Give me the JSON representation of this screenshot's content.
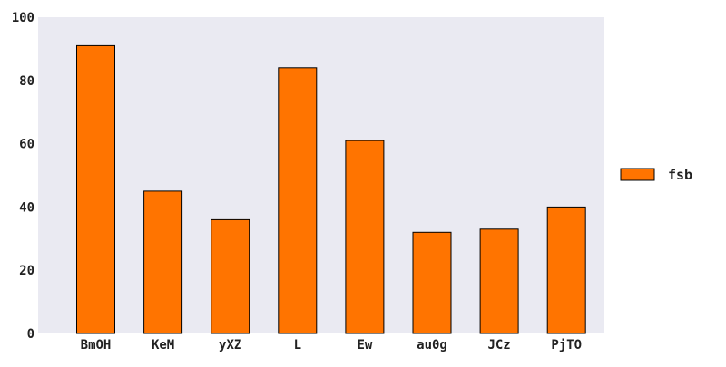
{
  "chart_data": {
    "type": "bar",
    "categories": [
      "BmOH",
      "KeM",
      "yXZ",
      "L",
      "Ew",
      "au0g",
      "JCz",
      "PjTO"
    ],
    "series": [
      {
        "name": "fsb",
        "values": [
          91,
          45,
          36,
          84,
          61,
          32,
          33,
          40
        ],
        "color": "#ff7400"
      }
    ],
    "ylim": [
      0,
      100
    ],
    "yticks": [
      0,
      20,
      40,
      60,
      80,
      100
    ],
    "grid": false,
    "legend_position": "right",
    "plot_background": "#eaeaf2"
  }
}
